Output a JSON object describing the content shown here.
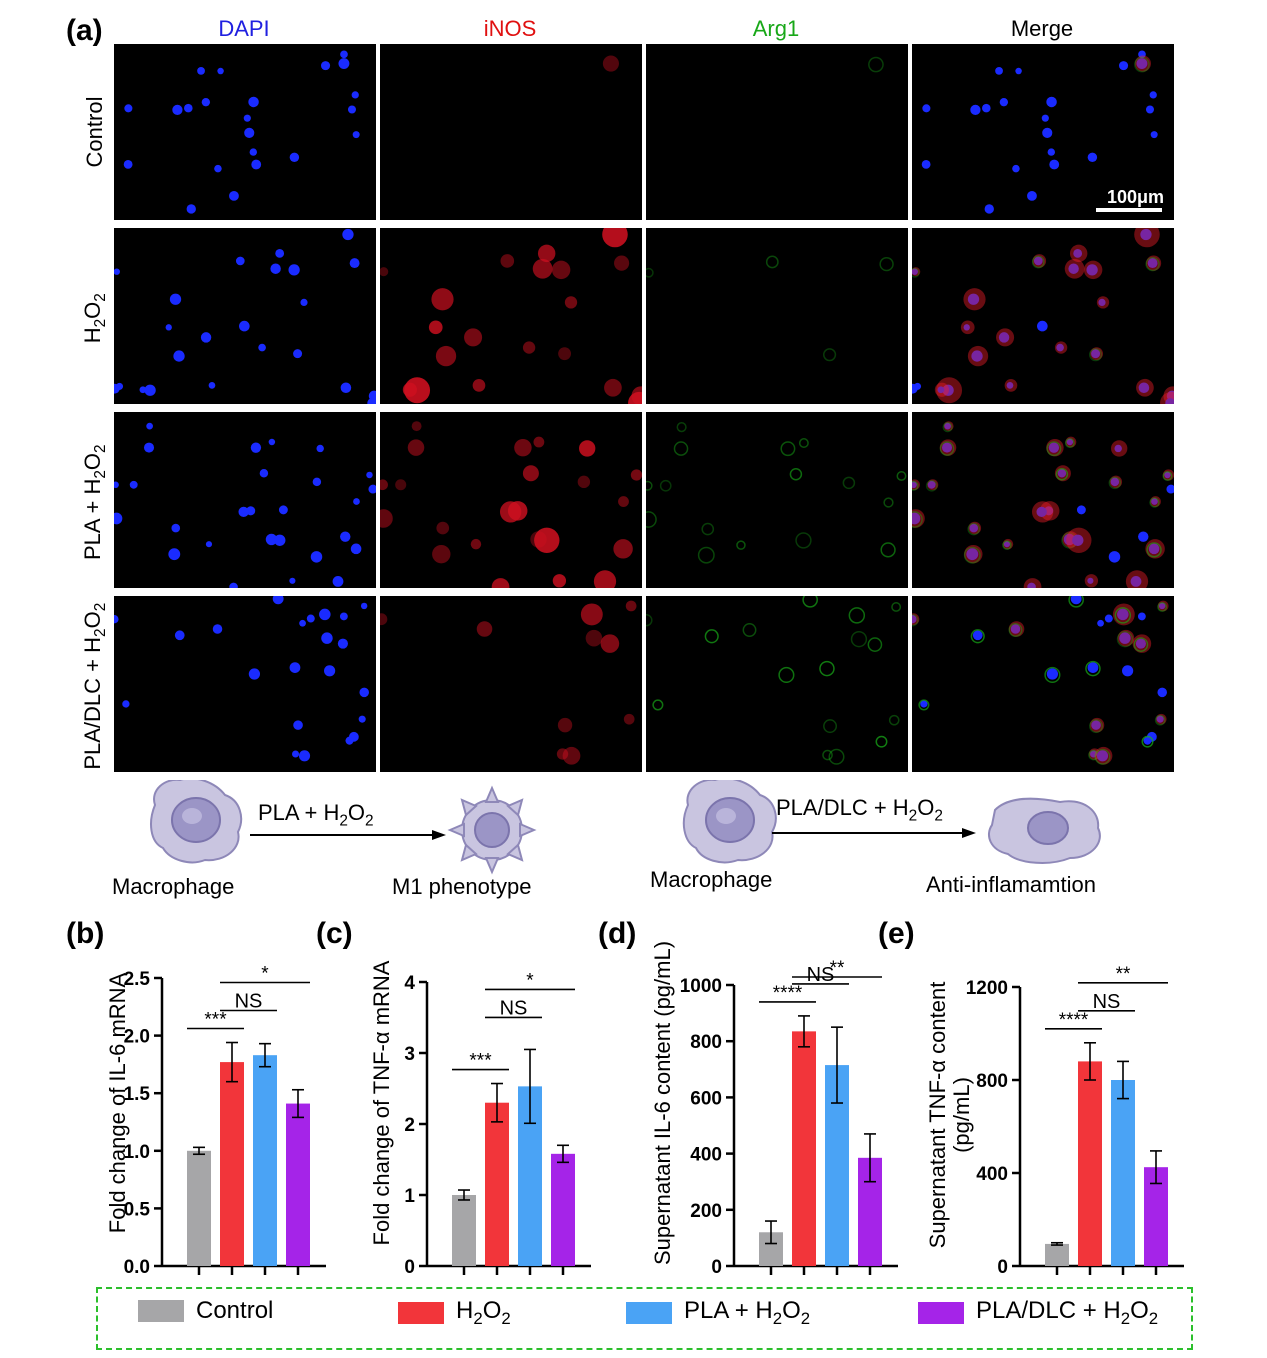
{
  "panel_a": {
    "letter": "(a)",
    "columns": [
      {
        "label": "DAPI",
        "color": "#2020e0"
      },
      {
        "label": "iNOS",
        "color": "#e01010"
      },
      {
        "label": "Arg1",
        "color": "#18a818"
      },
      {
        "label": "Merge",
        "color": "#000000"
      }
    ],
    "rows": [
      "Control",
      "H2O2",
      "PLA + H2O2",
      "PLA/DLC + H2O2"
    ],
    "scale_bar": "100μm"
  },
  "schematic": {
    "left": {
      "from": "Macrophage",
      "arrow": "PLA + H2O2",
      "to": "M1 phenotype"
    },
    "right": {
      "from": "Macrophage",
      "arrow": "PLA/DLC + H2O2",
      "to": "Anti-inflamamtion"
    }
  },
  "colors": {
    "control": "#a6a6a8",
    "h2o2": "#f2353a",
    "pla": "#4aa3f5",
    "pladlc": "#a524e8"
  },
  "legend": [
    "Control",
    "H2O2",
    "PLA + H2O2",
    "PLA/DLC + H2O2"
  ],
  "chart_data": [
    {
      "panel": "(b)",
      "type": "bar",
      "ylabel": "Fold change of IL-6 mRNA",
      "ylim": [
        0,
        2.5
      ],
      "yticks": [
        "0.0",
        "0.5",
        "1.0",
        "1.5",
        "2.0",
        "2.5"
      ],
      "categories": [
        "Control",
        "H2O2",
        "PLA + H2O2",
        "PLA/DLC + H2O2"
      ],
      "values": [
        1.0,
        1.77,
        1.83,
        1.41
      ],
      "errors": [
        0.03,
        0.17,
        0.1,
        0.12
      ],
      "annotations": [
        "***",
        "NS",
        "*"
      ]
    },
    {
      "panel": "(c)",
      "type": "bar",
      "ylabel": "Fold change of TNF-α mRNA",
      "ylim": [
        0,
        4
      ],
      "yticks": [
        "0",
        "1",
        "2",
        "3",
        "4"
      ],
      "categories": [
        "Control",
        "H2O2",
        "PLA + H2O2",
        "PLA/DLC + H2O2"
      ],
      "values": [
        1.0,
        2.3,
        2.53,
        1.58
      ],
      "errors": [
        0.07,
        0.27,
        0.52,
        0.12
      ],
      "annotations": [
        "***",
        "NS",
        "*"
      ]
    },
    {
      "panel": "(d)",
      "type": "bar",
      "ylabel": "Supernatant IL-6 content (pg/mL)",
      "ylim": [
        0,
        1000
      ],
      "yticks": [
        "0",
        "200",
        "400",
        "600",
        "800",
        "1000"
      ],
      "categories": [
        "Control",
        "H2O2",
        "PLA + H2O2",
        "PLA/DLC + H2O2"
      ],
      "values": [
        120,
        835,
        715,
        385
      ],
      "errors": [
        40,
        55,
        135,
        85
      ],
      "annotations": [
        "****",
        "NS",
        "**"
      ]
    },
    {
      "panel": "(e)",
      "type": "bar",
      "ylabel": "Supernatant TNF-α content (pg/mL)",
      "ylim": [
        0,
        1200
      ],
      "yticks": [
        "0",
        "400",
        "800",
        "1200"
      ],
      "categories": [
        "Control",
        "H2O2",
        "PLA + H2O2",
        "PLA/DLC + H2O2"
      ],
      "values": [
        95,
        880,
        800,
        425
      ],
      "errors": [
        5,
        80,
        80,
        70
      ],
      "annotations": [
        "****",
        "NS",
        "**"
      ]
    }
  ]
}
